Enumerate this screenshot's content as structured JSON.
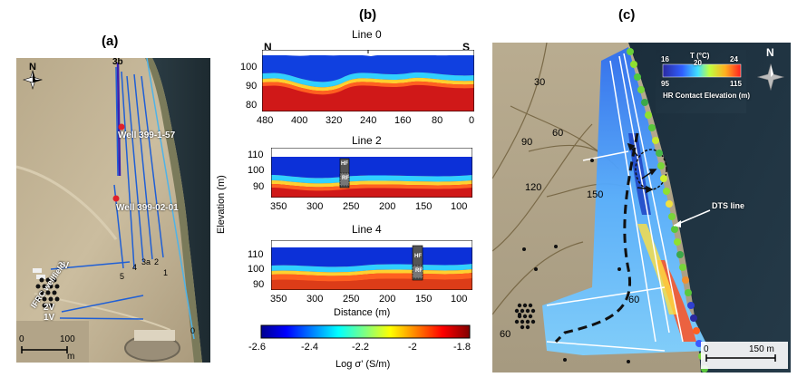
{
  "panels": {
    "a": {
      "label": "(a)",
      "north": "N",
      "line_labels": [
        "3b",
        "4",
        "3a",
        "2",
        "1",
        "5",
        "3V",
        "2V",
        "1V",
        "0"
      ],
      "wells": [
        "Well 399-1-57",
        "Well 399-02-01"
      ],
      "wellfield": "IFRC wellfield",
      "scale_zero": "0",
      "scale_value": "100",
      "scale_unit": "m",
      "colors": {
        "line": "#1f5fd6",
        "river_line": "#4fb3e8",
        "well": "#e0202a"
      }
    },
    "b": {
      "label": "(b)",
      "line0": {
        "title": "Line 0",
        "left": "N",
        "right": "S",
        "y_ticks": [
          "100",
          "90",
          "80"
        ],
        "x_ticks": [
          "480",
          "400",
          "320",
          "240",
          "160",
          "80",
          "0"
        ]
      },
      "line2": {
        "title": "Line 2",
        "y_ticks": [
          "110",
          "100",
          "90"
        ],
        "x_ticks": [
          "350",
          "300",
          "250",
          "200",
          "150",
          "100"
        ],
        "marker_top": "HF",
        "marker_bottom": "RF"
      },
      "line4": {
        "title": "Line 4",
        "y_ticks": [
          "110",
          "100",
          "90"
        ],
        "x_ticks": [
          "350",
          "300",
          "250",
          "200",
          "150",
          "100"
        ],
        "marker_top": "HF",
        "marker_bottom": "RF"
      },
      "ylabel": "Elevation (m)",
      "xlabel": "Distance (m)",
      "colorbar": {
        "ticks": [
          "-2.6",
          "-2.4",
          "-2.2",
          "-2",
          "-1.8"
        ],
        "label": "Log σ' (S/m)",
        "min": -2.6,
        "max": -1.8
      }
    },
    "c": {
      "label": "(c)",
      "north": "N",
      "t_label": "T (°C)",
      "t_ticks": [
        "16",
        "20",
        "24"
      ],
      "hr_ticks": [
        "95",
        "115"
      ],
      "hr_label": "HR Contact Elevation (m)",
      "contours": [
        "30",
        "60",
        "90",
        "120",
        "150",
        "60",
        "60"
      ],
      "dts_label": "DTS line",
      "scale_zero": "0",
      "scale_value": "150 m"
    }
  }
}
